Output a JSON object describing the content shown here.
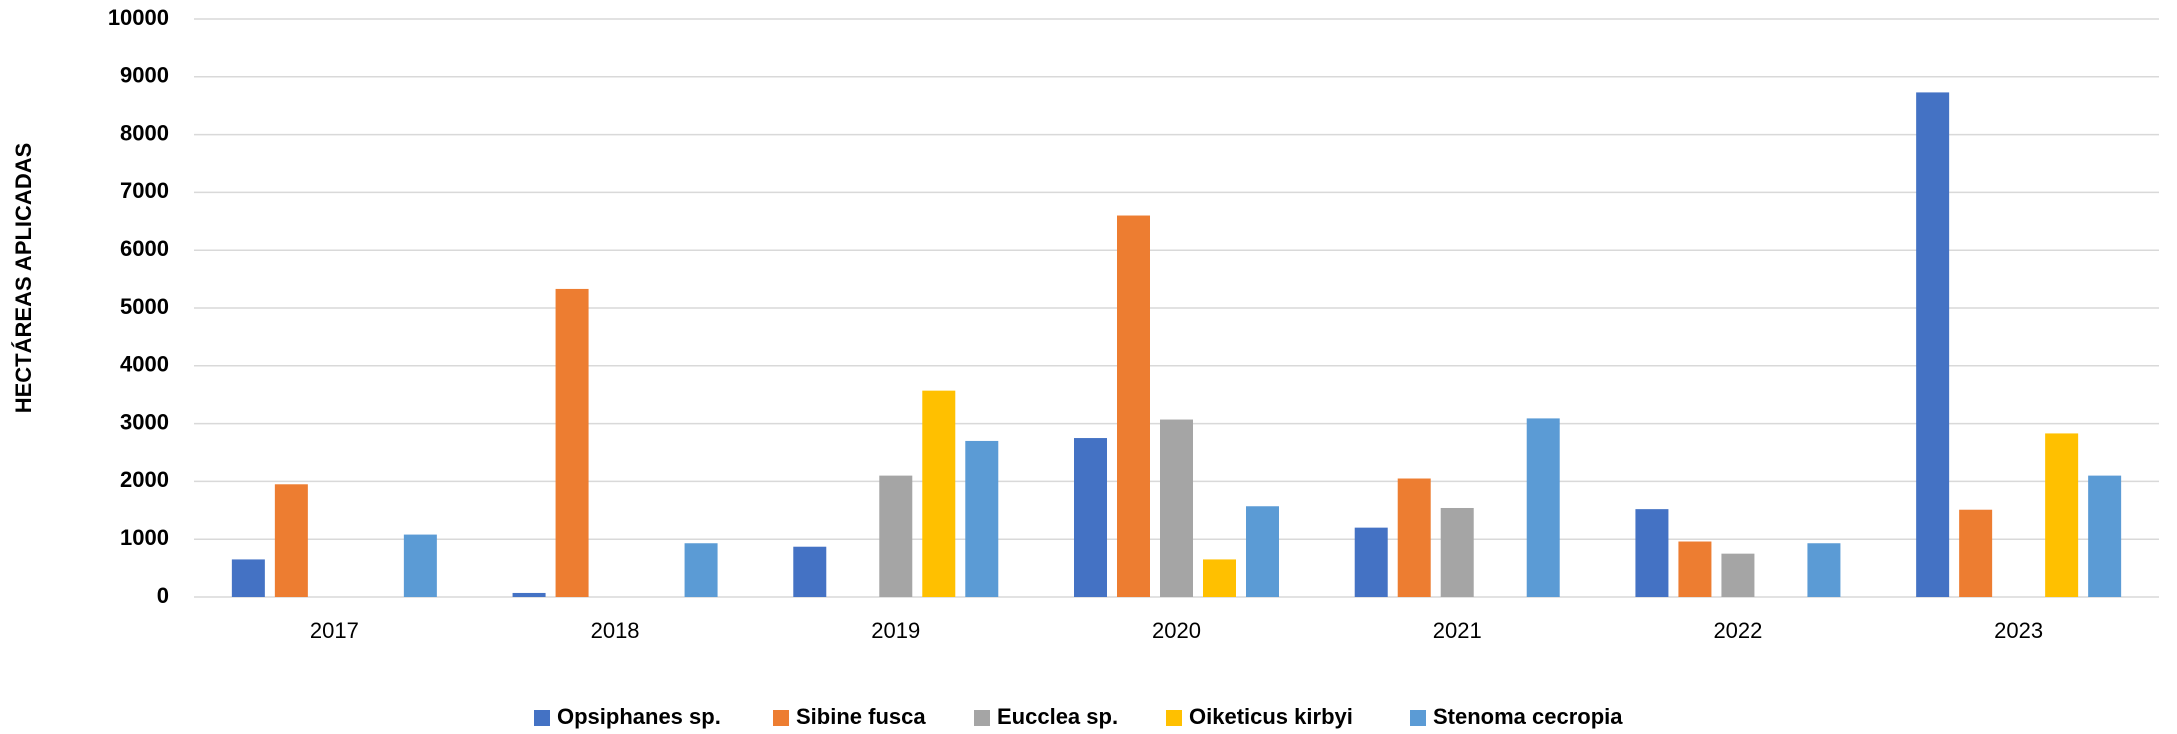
{
  "chart_data": {
    "type": "bar",
    "y_axis_label": "HECTÁREAS APLICADAS",
    "categories": [
      "2017",
      "2018",
      "2019",
      "2020",
      "2021",
      "2022",
      "2023"
    ],
    "series": [
      {
        "name": "Opsiphanes sp.",
        "color": "#4472c4",
        "values": [
          650,
          70,
          870,
          2750,
          1200,
          1520,
          8730
        ]
      },
      {
        "name": "Sibine fusca",
        "color": "#ed7d31",
        "values": [
          1950,
          5330,
          null,
          6600,
          2050,
          960,
          1510
        ]
      },
      {
        "name": "Eucclea sp.",
        "color": "#a5a5a5",
        "values": [
          null,
          null,
          2100,
          3070,
          1540,
          750,
          null
        ]
      },
      {
        "name": "Oiketicus kirbyi",
        "color": "#ffc000",
        "values": [
          null,
          null,
          3570,
          650,
          null,
          null,
          2830
        ]
      },
      {
        "name": "Stenoma cecropia",
        "color": "#5b9bd5",
        "values": [
          1080,
          930,
          2700,
          1570,
          3090,
          930,
          2100
        ]
      }
    ],
    "ylim": [
      0,
      10000
    ],
    "yticks": [
      0,
      1000,
      2000,
      3000,
      4000,
      5000,
      6000,
      7000,
      8000,
      9000,
      10000
    ],
    "grid": true,
    "legend": "bottom"
  }
}
